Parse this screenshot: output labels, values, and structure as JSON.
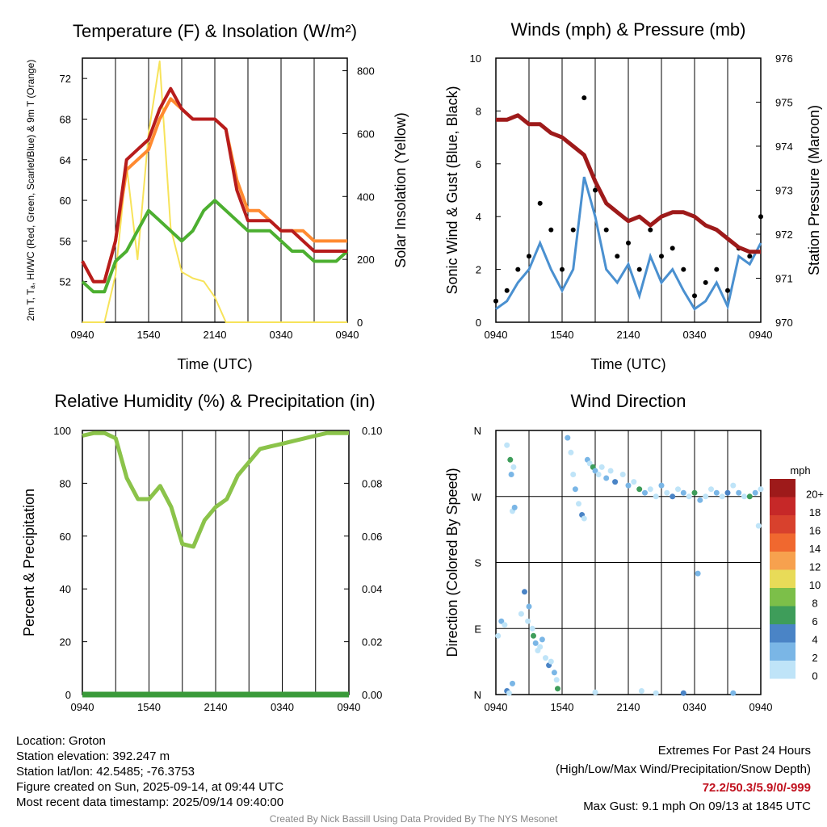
{
  "chart_data": [
    {
      "type": "line",
      "title": "Temperature (F) & Insolation (W/m²)",
      "xlabel": "Time (UTC)",
      "ylabel": "2m T, Tₐ, HI/WC (Red, Green, Scarlet/Blue) & 9m T (Orange)",
      "y2label": "Solar Insolation (Yellow)",
      "x_ticks": [
        "0940",
        "1540",
        "2140",
        "0340",
        "0940"
      ],
      "ylim": [
        48,
        74
      ],
      "y_ticks": [
        52,
        56,
        60,
        64,
        68,
        72
      ],
      "y2lim": [
        0,
        840
      ],
      "y2_ticks": [
        0,
        200,
        400,
        600,
        800
      ],
      "grid": true,
      "x_hours": [
        0,
        1,
        2,
        3,
        4,
        5,
        6,
        7,
        8,
        9,
        10,
        11,
        12,
        13,
        14,
        15,
        16,
        17,
        18,
        19,
        20,
        21,
        22,
        23,
        24
      ],
      "series": [
        {
          "color": "#b71c1c",
          "axis": "left",
          "values": [
            54,
            52,
            52,
            56,
            64,
            65,
            66,
            69,
            71,
            69,
            68,
            68,
            68,
            67,
            61,
            58,
            58,
            58,
            57,
            57,
            56,
            55,
            55,
            55,
            55
          ]
        },
        {
          "color": "#ff8a30",
          "axis": "left",
          "values": [
            54,
            52,
            52,
            56,
            63,
            64,
            65,
            68,
            70,
            69,
            68,
            68,
            68,
            67,
            62,
            59,
            59,
            58,
            57,
            57,
            57,
            56,
            56,
            56,
            56
          ]
        },
        {
          "color": "#4caf30",
          "axis": "left",
          "values": [
            52,
            51,
            51,
            54,
            55,
            57,
            59,
            58,
            57,
            56,
            57,
            59,
            60,
            59,
            58,
            57,
            57,
            57,
            56,
            55,
            55,
            54,
            54,
            54,
            55
          ]
        },
        {
          "color": "#f7e35a",
          "axis": "right",
          "values": [
            0,
            0,
            0,
            150,
            500,
            200,
            600,
            830,
            300,
            160,
            140,
            130,
            80,
            0,
            0,
            0,
            0,
            0,
            0,
            0,
            0,
            0,
            0,
            0,
            0
          ]
        }
      ]
    },
    {
      "type": "line",
      "title": "Winds (mph) & Pressure (mb)",
      "xlabel": "Time (UTC)",
      "ylabel": "Sonic Wind & Gust (Blue, Black)",
      "y2label": "Station Pressure (Maroon)",
      "x_ticks": [
        "0940",
        "1540",
        "2140",
        "0340",
        "0940"
      ],
      "ylim": [
        0,
        10
      ],
      "y_ticks": [
        0,
        2,
        4,
        6,
        8,
        10
      ],
      "y2lim": [
        970,
        976
      ],
      "y2_ticks": [
        970,
        971,
        972,
        973,
        974,
        975,
        976
      ],
      "grid": true,
      "x_hours": [
        0,
        1,
        2,
        3,
        4,
        5,
        6,
        7,
        8,
        9,
        10,
        11,
        12,
        13,
        14,
        15,
        16,
        17,
        18,
        19,
        20,
        21,
        22,
        23,
        24
      ],
      "series": [
        {
          "color": "#4a90d0",
          "axis": "left",
          "values": [
            0.5,
            0.8,
            1.5,
            2.0,
            3.0,
            2.0,
            1.2,
            2.0,
            5.5,
            4.0,
            2.0,
            1.5,
            2.2,
            1.0,
            2.5,
            1.5,
            2.0,
            1.2,
            0.5,
            0.8,
            1.5,
            0.6,
            2.5,
            2.2,
            3.0
          ]
        },
        {
          "color": "#000000",
          "axis": "left",
          "values": [
            0.8,
            1.2,
            2.0,
            2.5,
            4.5,
            3.5,
            2.0,
            3.5,
            8.5,
            5.0,
            3.5,
            2.5,
            3.0,
            2.0,
            3.5,
            2.5,
            2.8,
            2.0,
            1.0,
            1.5,
            2.0,
            1.2,
            2.8,
            2.5,
            4.0
          ]
        },
        {
          "color": "#9e1a1a",
          "axis": "right",
          "values": [
            974.6,
            974.6,
            974.7,
            974.5,
            974.5,
            974.3,
            974.2,
            974.0,
            973.8,
            973.2,
            972.7,
            972.5,
            972.3,
            972.4,
            972.2,
            972.4,
            972.5,
            972.5,
            972.4,
            972.2,
            972.1,
            971.9,
            971.7,
            971.6,
            971.6
          ]
        }
      ]
    },
    {
      "type": "line",
      "title": "Relative Humidity (%) & Precipitation (in)",
      "xlabel": "",
      "ylabel": "Percent & Precipitation",
      "x_ticks": [
        "0940",
        "1540",
        "2140",
        "0340",
        "0940"
      ],
      "ylim": [
        0,
        100
      ],
      "y_ticks": [
        0,
        20,
        40,
        60,
        80,
        100
      ],
      "y2lim": [
        0,
        0.1
      ],
      "y2_ticks": [
        "0.00",
        "0.02",
        "0.04",
        "0.06",
        "0.08",
        "0.10"
      ],
      "grid": true,
      "x_hours": [
        0,
        1,
        2,
        3,
        4,
        5,
        6,
        7,
        8,
        9,
        10,
        11,
        12,
        13,
        14,
        15,
        16,
        17,
        18,
        19,
        20,
        21,
        22,
        23,
        24
      ],
      "series": [
        {
          "color": "#8bc34a",
          "axis": "left",
          "values": [
            98,
            99,
            99,
            97,
            82,
            74,
            74,
            79,
            71,
            57,
            56,
            66,
            71,
            74,
            83,
            88,
            93,
            94,
            95,
            96,
            97,
            98,
            99,
            99,
            99
          ]
        },
        {
          "color": "#3a9a3a",
          "axis": "right",
          "values": [
            0,
            0,
            0,
            0,
            0,
            0,
            0,
            0,
            0,
            0,
            0,
            0,
            0,
            0,
            0,
            0,
            0,
            0,
            0,
            0,
            0,
            0,
            0,
            0,
            0
          ]
        }
      ]
    },
    {
      "type": "scatter",
      "title": "Wind Direction",
      "xlabel": "",
      "ylabel": "Direction (Colored By Speed)",
      "x_ticks": [
        "0940",
        "1540",
        "2140",
        "0340",
        "0940"
      ],
      "y_ticks": [
        "N",
        "E",
        "S",
        "W",
        "N"
      ],
      "ylim": [
        0,
        360
      ],
      "grid": true,
      "colorbar": {
        "title": "mph",
        "labels": [
          "20+",
          "18",
          "16",
          "14",
          "12",
          "10",
          "8",
          "6",
          "4",
          "2",
          "0"
        ],
        "colors": [
          "#9e1a1a",
          "#c62828",
          "#d8412d",
          "#f0682f",
          "#f7a14e",
          "#e8db58",
          "#7cbf49",
          "#3e9d5a",
          "#4a84c6",
          "#7ab6e6",
          "#bfe4f8"
        ]
      },
      "points": [
        [
          0.2,
          80
        ],
        [
          0.5,
          100
        ],
        [
          0.8,
          95
        ],
        [
          1.0,
          5
        ],
        [
          1.2,
          2
        ],
        [
          1.5,
          15
        ],
        [
          1.0,
          340
        ],
        [
          1.3,
          320
        ],
        [
          1.4,
          300
        ],
        [
          1.6,
          310
        ],
        [
          1.5,
          250
        ],
        [
          1.7,
          255
        ],
        [
          2.3,
          110
        ],
        [
          2.6,
          140
        ],
        [
          2.9,
          100
        ],
        [
          3.0,
          120
        ],
        [
          3.3,
          90
        ],
        [
          3.4,
          80
        ],
        [
          3.6,
          70
        ],
        [
          3.8,
          60
        ],
        [
          4.0,
          65
        ],
        [
          4.2,
          75
        ],
        [
          4.5,
          50
        ],
        [
          4.8,
          40
        ],
        [
          5.0,
          45
        ],
        [
          5.3,
          30
        ],
        [
          5.5,
          20
        ],
        [
          5.6,
          8
        ],
        [
          6.5,
          350
        ],
        [
          6.8,
          330
        ],
        [
          7.0,
          300
        ],
        [
          7.2,
          280
        ],
        [
          7.5,
          260
        ],
        [
          7.8,
          245
        ],
        [
          8.0,
          240
        ],
        [
          8.3,
          320
        ],
        [
          8.5,
          315
        ],
        [
          8.8,
          310
        ],
        [
          9.0,
          305
        ],
        [
          9.3,
          300
        ],
        [
          9.6,
          310
        ],
        [
          10.0,
          295
        ],
        [
          10.4,
          305
        ],
        [
          10.8,
          290
        ],
        [
          11.5,
          300
        ],
        [
          12.0,
          285
        ],
        [
          12.5,
          290
        ],
        [
          13.0,
          280
        ],
        [
          13.5,
          275
        ],
        [
          14.0,
          280
        ],
        [
          14.5,
          270
        ],
        [
          15.0,
          285
        ],
        [
          15.5,
          275
        ],
        [
          16.0,
          270
        ],
        [
          16.5,
          280
        ],
        [
          17.0,
          275
        ],
        [
          17.5,
          270
        ],
        [
          18.0,
          275
        ],
        [
          18.5,
          265
        ],
        [
          19.0,
          270
        ],
        [
          19.5,
          280
        ],
        [
          20.0,
          275
        ],
        [
          20.5,
          270
        ],
        [
          21.0,
          275
        ],
        [
          21.5,
          285
        ],
        [
          22.0,
          275
        ],
        [
          22.5,
          270
        ],
        [
          23.0,
          270
        ],
        [
          23.5,
          275
        ],
        [
          24.0,
          280
        ],
        [
          23.8,
          230
        ],
        [
          18.3,
          165
        ],
        [
          14.5,
          2
        ],
        [
          17.0,
          2
        ],
        [
          13.2,
          5
        ],
        [
          21.5,
          2
        ],
        [
          9.0,
          3
        ]
      ]
    }
  ],
  "info": {
    "location": "Location: Groton",
    "elevation": "Station elevation: 392.247 m",
    "latlon": "Station lat/lon: 42.5485; -76.3753",
    "created": "Figure created on Sun, 2025-09-14, at 09:44 UTC",
    "recent": "Most recent data timestamp: 2025/09/14 09:40:00"
  },
  "extremes": {
    "title": "Extremes For Past 24 Hours",
    "subtitle": "(High/Low/Max Wind/Precipitation/Snow Depth)",
    "values": "72.2/50.3/5.9/0/-999",
    "gust": "Max Gust: 9.1 mph On 09/13 at 1845 UTC"
  },
  "credit": "Created By Nick Bassill Using Data Provided By The NYS Mesonet"
}
